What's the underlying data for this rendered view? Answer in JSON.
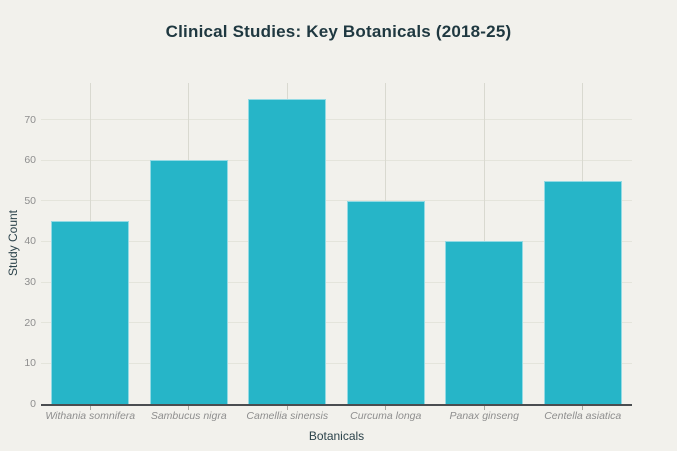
{
  "title": "Clinical Studies: Key Botanicals (2018-25)",
  "colors": {
    "background": "#f2f1ec",
    "bar": "#26b5c8",
    "grid_horizontal": "#e4e4db",
    "grid_vertical": "#d9d9d0",
    "axis_line": "#4a4d50",
    "tick_label": "#8e8e8e",
    "text_dark": "#1f3840"
  },
  "chart_data": {
    "type": "bar",
    "title": "Clinical Studies: Key Botanicals (2018-25)",
    "categories": [
      "Withania somnifera",
      "Sambucus nigra",
      "Camellia sinensis",
      "Curcuma longa",
      "Panax ginseng",
      "Centella asiatica"
    ],
    "values": [
      45,
      60,
      75,
      50,
      40,
      55
    ],
    "xlabel": "Botanicals",
    "ylabel": "Study Count",
    "yticks": [
      0,
      10,
      20,
      30,
      40,
      50,
      60,
      70
    ],
    "ylim": [
      0,
      79
    ],
    "grid": true,
    "legend": "none",
    "bar_color": "#26b5c8",
    "category_label_style": "italic"
  }
}
